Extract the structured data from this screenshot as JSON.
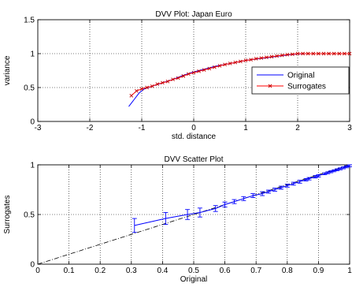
{
  "chart_data": [
    {
      "type": "line",
      "title": "DVV Plot: Japan Euro",
      "xlabel": "std. distance",
      "ylabel": "variance",
      "xlim": [
        -3,
        3
      ],
      "ylim": [
        0,
        1.5
      ],
      "xticks": [
        "-3",
        "-2",
        "-1",
        "0",
        "1",
        "2",
        "3"
      ],
      "yticks": [
        "0",
        "0.5",
        "1",
        "1.5"
      ],
      "grid": true,
      "legend_position": "right",
      "colors": {
        "Original": "#0000ff",
        "Surrogates": "#ff0000",
        "markers": "#c00000"
      },
      "series": [
        {
          "name": "Original",
          "x": [
            -1.25,
            -1.15,
            -1.05,
            -0.95,
            -0.8,
            -0.6,
            -0.4,
            -0.2,
            0,
            0.2,
            0.4,
            0.6,
            0.8,
            1.0,
            1.2,
            1.4,
            1.6,
            1.8,
            2.0,
            2.2,
            2.4,
            2.6,
            2.8,
            3.0
          ],
          "y": [
            0.22,
            0.32,
            0.42,
            0.48,
            0.52,
            0.57,
            0.62,
            0.68,
            0.73,
            0.77,
            0.81,
            0.84,
            0.87,
            0.9,
            0.92,
            0.94,
            0.96,
            0.98,
            0.995,
            1.0,
            1.0,
            1.0,
            1.0,
            1.0
          ]
        },
        {
          "name": "Surrogates",
          "x": [
            -1.2,
            -1.1,
            -1.0,
            -0.9,
            -0.8,
            -0.7,
            -0.6,
            -0.5,
            -0.4,
            -0.3,
            -0.2,
            -0.1,
            0,
            0.1,
            0.2,
            0.3,
            0.4,
            0.5,
            0.6,
            0.7,
            0.8,
            0.9,
            1.0,
            1.1,
            1.2,
            1.3,
            1.4,
            1.5,
            1.6,
            1.7,
            1.8,
            1.9,
            2.0,
            2.1,
            2.2,
            2.3,
            2.4,
            2.5,
            2.6,
            2.7,
            2.8,
            2.9,
            3.0
          ],
          "y": [
            0.38,
            0.45,
            0.48,
            0.5,
            0.52,
            0.55,
            0.57,
            0.59,
            0.62,
            0.64,
            0.67,
            0.7,
            0.72,
            0.74,
            0.76,
            0.78,
            0.8,
            0.82,
            0.84,
            0.855,
            0.87,
            0.885,
            0.9,
            0.91,
            0.925,
            0.935,
            0.945,
            0.955,
            0.965,
            0.975,
            0.985,
            0.99,
            1.0,
            1.0,
            1.0,
            1.0,
            1.0,
            1.0,
            1.0,
            1.0,
            1.0,
            1.0,
            1.0
          ]
        }
      ]
    },
    {
      "type": "scatter",
      "title": "DVV Scatter Plot",
      "xlabel": "Original",
      "ylabel": "Surrogates",
      "xlim": [
        0,
        1
      ],
      "ylim": [
        0,
        1
      ],
      "xticks": [
        "0",
        "0.1",
        "0.2",
        "0.3",
        "0.4",
        "0.5",
        "0.6",
        "0.7",
        "0.8",
        "0.9",
        "1"
      ],
      "yticks": [
        "0",
        "0.5",
        "1"
      ],
      "grid": true,
      "reference_line": {
        "x": [
          0,
          1
        ],
        "y": [
          0,
          1
        ],
        "style": "dash-dot"
      },
      "colors": {
        "errorbars": "#0000ff",
        "reference": "#000000"
      },
      "series": [
        {
          "x": [
            0.31,
            0.41,
            0.48,
            0.52,
            0.57,
            0.6,
            0.63,
            0.66,
            0.69,
            0.72,
            0.74,
            0.76,
            0.78,
            0.8,
            0.82,
            0.84,
            0.86,
            0.87,
            0.89,
            0.9,
            0.92,
            0.93,
            0.94,
            0.95,
            0.96,
            0.97,
            0.98,
            0.99,
            1.0
          ],
          "y": [
            0.39,
            0.46,
            0.5,
            0.52,
            0.56,
            0.6,
            0.63,
            0.66,
            0.69,
            0.71,
            0.73,
            0.75,
            0.77,
            0.79,
            0.81,
            0.83,
            0.85,
            0.86,
            0.88,
            0.89,
            0.91,
            0.92,
            0.93,
            0.94,
            0.95,
            0.96,
            0.97,
            0.98,
            0.99
          ],
          "error": [
            0.07,
            0.06,
            0.05,
            0.045,
            0.03,
            0.025,
            0.02,
            0.02,
            0.02,
            0.02,
            0.015,
            0.015,
            0.015,
            0.015,
            0.015,
            0.015,
            0.012,
            0.012,
            0.012,
            0.012,
            0.01,
            0.01,
            0.01,
            0.01,
            0.01,
            0.01,
            0.01,
            0.01,
            0.01
          ]
        }
      ]
    }
  ]
}
